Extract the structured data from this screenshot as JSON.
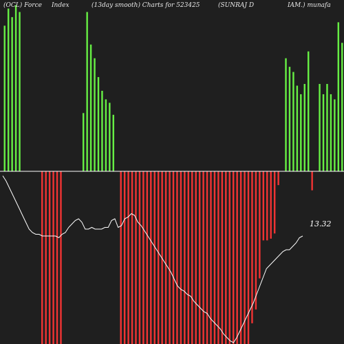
{
  "header": {
    "segments": [
      "(OCL) Force",
      "Index",
      "(13day smooth) Charts for 523425",
      "(SUNRAJ D",
      "IAM.) munafa"
    ]
  },
  "chart_data": {
    "type": "bar",
    "title": "(OCL) Force Index (13day smooth) Charts for 523425 (SUNRAJ DIAM.) munafa",
    "xlabel": "",
    "ylabel": "",
    "bar_ylim": [
      -100,
      100
    ],
    "bar_colors": {
      "positive": "#66ee44",
      "negative": "#ee3333"
    },
    "bars": [
      85,
      95,
      90,
      97,
      93,
      0,
      0,
      0,
      0,
      0,
      -100,
      -100,
      -100,
      -100,
      -100,
      -100,
      0,
      0,
      0,
      0,
      0,
      34,
      93,
      74,
      66,
      55,
      47,
      42,
      40,
      33,
      0,
      -100,
      -100,
      -100,
      -100,
      -100,
      -100,
      -100,
      -100,
      -100,
      -100,
      -100,
      -100,
      -100,
      -100,
      -100,
      -100,
      -100,
      -100,
      -100,
      -100,
      -100,
      -100,
      -100,
      -100,
      -100,
      -100,
      -100,
      -100,
      -100,
      -100,
      -100,
      -100,
      -100,
      -100,
      -100,
      -88,
      -80,
      -62,
      -40,
      -40,
      -39,
      -36,
      -8,
      0,
      66,
      61,
      58,
      50,
      45,
      51,
      70,
      -11,
      0,
      51,
      45,
      51,
      45,
      42,
      87,
      75
    ],
    "line": {
      "color": "#ffffff",
      "series_values": [
        97,
        94,
        90,
        86,
        82,
        78,
        74,
        70,
        66,
        64,
        63,
        63,
        62,
        62,
        62,
        62,
        62,
        61,
        63,
        64,
        67,
        69,
        71,
        72,
        70,
        66,
        66,
        67,
        66,
        66,
        66,
        67,
        67,
        71,
        72,
        67,
        68,
        72,
        73,
        75,
        74,
        70,
        68,
        65,
        62,
        59,
        56,
        53,
        50,
        47,
        44,
        41,
        37,
        33,
        31,
        30,
        28,
        27,
        24,
        22,
        20,
        18,
        17,
        14,
        12,
        10,
        8,
        5,
        3,
        1,
        0,
        3,
        7,
        11,
        15,
        19,
        23,
        28,
        33,
        38,
        43,
        45,
        47,
        49,
        51,
        53,
        54,
        54,
        56,
        58,
        61,
        62
      ],
      "ylim": [
        0,
        100
      ],
      "last_value_label": "13.32"
    }
  }
}
